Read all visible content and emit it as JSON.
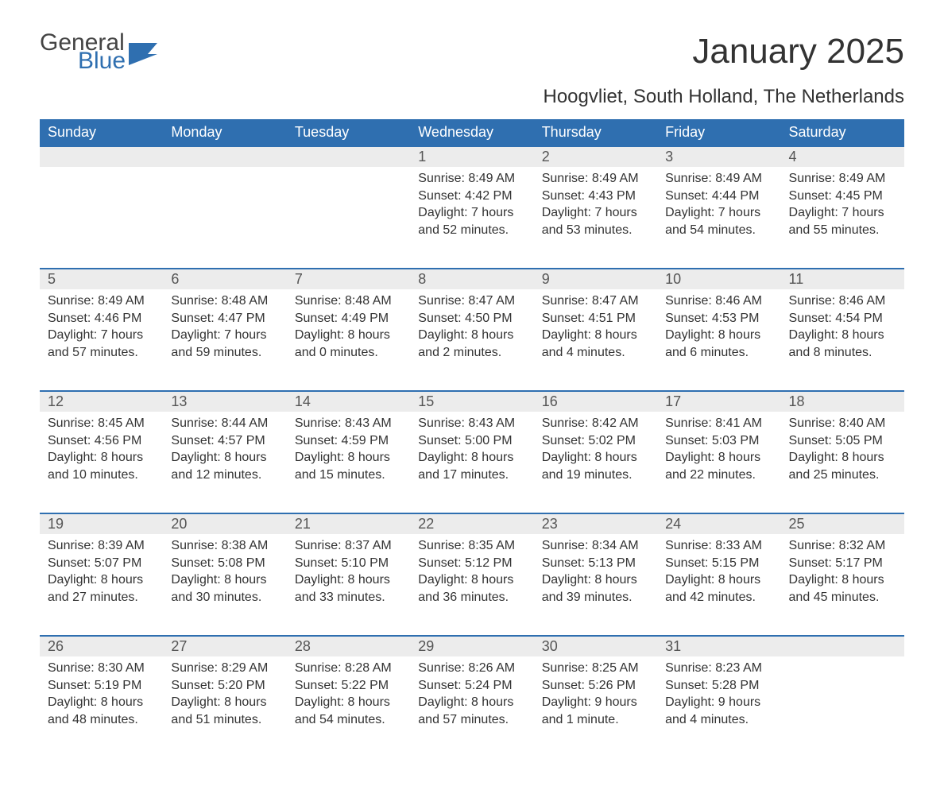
{
  "logo": {
    "line1": "General",
    "line2": "Blue"
  },
  "title": "January 2025",
  "location": "Hoogvliet, South Holland, The Netherlands",
  "headers": [
    "Sunday",
    "Monday",
    "Tuesday",
    "Wednesday",
    "Thursday",
    "Friday",
    "Saturday"
  ],
  "colors": {
    "header_bg": "#2f6fb0",
    "header_text": "#ffffff",
    "daynum_bg": "#ececec",
    "daynum_border": "#2f6fb0",
    "body_text": "#333333",
    "logo_gray": "#444444",
    "logo_blue": "#2f6fb0",
    "page_bg": "#ffffff"
  },
  "weeks": [
    [
      null,
      null,
      null,
      {
        "n": "1",
        "sunrise": "Sunrise: 8:49 AM",
        "sunset": "Sunset: 4:42 PM",
        "d1": "Daylight: 7 hours",
        "d2": "and 52 minutes."
      },
      {
        "n": "2",
        "sunrise": "Sunrise: 8:49 AM",
        "sunset": "Sunset: 4:43 PM",
        "d1": "Daylight: 7 hours",
        "d2": "and 53 minutes."
      },
      {
        "n": "3",
        "sunrise": "Sunrise: 8:49 AM",
        "sunset": "Sunset: 4:44 PM",
        "d1": "Daylight: 7 hours",
        "d2": "and 54 minutes."
      },
      {
        "n": "4",
        "sunrise": "Sunrise: 8:49 AM",
        "sunset": "Sunset: 4:45 PM",
        "d1": "Daylight: 7 hours",
        "d2": "and 55 minutes."
      }
    ],
    [
      {
        "n": "5",
        "sunrise": "Sunrise: 8:49 AM",
        "sunset": "Sunset: 4:46 PM",
        "d1": "Daylight: 7 hours",
        "d2": "and 57 minutes."
      },
      {
        "n": "6",
        "sunrise": "Sunrise: 8:48 AM",
        "sunset": "Sunset: 4:47 PM",
        "d1": "Daylight: 7 hours",
        "d2": "and 59 minutes."
      },
      {
        "n": "7",
        "sunrise": "Sunrise: 8:48 AM",
        "sunset": "Sunset: 4:49 PM",
        "d1": "Daylight: 8 hours",
        "d2": "and 0 minutes."
      },
      {
        "n": "8",
        "sunrise": "Sunrise: 8:47 AM",
        "sunset": "Sunset: 4:50 PM",
        "d1": "Daylight: 8 hours",
        "d2": "and 2 minutes."
      },
      {
        "n": "9",
        "sunrise": "Sunrise: 8:47 AM",
        "sunset": "Sunset: 4:51 PM",
        "d1": "Daylight: 8 hours",
        "d2": "and 4 minutes."
      },
      {
        "n": "10",
        "sunrise": "Sunrise: 8:46 AM",
        "sunset": "Sunset: 4:53 PM",
        "d1": "Daylight: 8 hours",
        "d2": "and 6 minutes."
      },
      {
        "n": "11",
        "sunrise": "Sunrise: 8:46 AM",
        "sunset": "Sunset: 4:54 PM",
        "d1": "Daylight: 8 hours",
        "d2": "and 8 minutes."
      }
    ],
    [
      {
        "n": "12",
        "sunrise": "Sunrise: 8:45 AM",
        "sunset": "Sunset: 4:56 PM",
        "d1": "Daylight: 8 hours",
        "d2": "and 10 minutes."
      },
      {
        "n": "13",
        "sunrise": "Sunrise: 8:44 AM",
        "sunset": "Sunset: 4:57 PM",
        "d1": "Daylight: 8 hours",
        "d2": "and 12 minutes."
      },
      {
        "n": "14",
        "sunrise": "Sunrise: 8:43 AM",
        "sunset": "Sunset: 4:59 PM",
        "d1": "Daylight: 8 hours",
        "d2": "and 15 minutes."
      },
      {
        "n": "15",
        "sunrise": "Sunrise: 8:43 AM",
        "sunset": "Sunset: 5:00 PM",
        "d1": "Daylight: 8 hours",
        "d2": "and 17 minutes."
      },
      {
        "n": "16",
        "sunrise": "Sunrise: 8:42 AM",
        "sunset": "Sunset: 5:02 PM",
        "d1": "Daylight: 8 hours",
        "d2": "and 19 minutes."
      },
      {
        "n": "17",
        "sunrise": "Sunrise: 8:41 AM",
        "sunset": "Sunset: 5:03 PM",
        "d1": "Daylight: 8 hours",
        "d2": "and 22 minutes."
      },
      {
        "n": "18",
        "sunrise": "Sunrise: 8:40 AM",
        "sunset": "Sunset: 5:05 PM",
        "d1": "Daylight: 8 hours",
        "d2": "and 25 minutes."
      }
    ],
    [
      {
        "n": "19",
        "sunrise": "Sunrise: 8:39 AM",
        "sunset": "Sunset: 5:07 PM",
        "d1": "Daylight: 8 hours",
        "d2": "and 27 minutes."
      },
      {
        "n": "20",
        "sunrise": "Sunrise: 8:38 AM",
        "sunset": "Sunset: 5:08 PM",
        "d1": "Daylight: 8 hours",
        "d2": "and 30 minutes."
      },
      {
        "n": "21",
        "sunrise": "Sunrise: 8:37 AM",
        "sunset": "Sunset: 5:10 PM",
        "d1": "Daylight: 8 hours",
        "d2": "and 33 minutes."
      },
      {
        "n": "22",
        "sunrise": "Sunrise: 8:35 AM",
        "sunset": "Sunset: 5:12 PM",
        "d1": "Daylight: 8 hours",
        "d2": "and 36 minutes."
      },
      {
        "n": "23",
        "sunrise": "Sunrise: 8:34 AM",
        "sunset": "Sunset: 5:13 PM",
        "d1": "Daylight: 8 hours",
        "d2": "and 39 minutes."
      },
      {
        "n": "24",
        "sunrise": "Sunrise: 8:33 AM",
        "sunset": "Sunset: 5:15 PM",
        "d1": "Daylight: 8 hours",
        "d2": "and 42 minutes."
      },
      {
        "n": "25",
        "sunrise": "Sunrise: 8:32 AM",
        "sunset": "Sunset: 5:17 PM",
        "d1": "Daylight: 8 hours",
        "d2": "and 45 minutes."
      }
    ],
    [
      {
        "n": "26",
        "sunrise": "Sunrise: 8:30 AM",
        "sunset": "Sunset: 5:19 PM",
        "d1": "Daylight: 8 hours",
        "d2": "and 48 minutes."
      },
      {
        "n": "27",
        "sunrise": "Sunrise: 8:29 AM",
        "sunset": "Sunset: 5:20 PM",
        "d1": "Daylight: 8 hours",
        "d2": "and 51 minutes."
      },
      {
        "n": "28",
        "sunrise": "Sunrise: 8:28 AM",
        "sunset": "Sunset: 5:22 PM",
        "d1": "Daylight: 8 hours",
        "d2": "and 54 minutes."
      },
      {
        "n": "29",
        "sunrise": "Sunrise: 8:26 AM",
        "sunset": "Sunset: 5:24 PM",
        "d1": "Daylight: 8 hours",
        "d2": "and 57 minutes."
      },
      {
        "n": "30",
        "sunrise": "Sunrise: 8:25 AM",
        "sunset": "Sunset: 5:26 PM",
        "d1": "Daylight: 9 hours",
        "d2": "and 1 minute."
      },
      {
        "n": "31",
        "sunrise": "Sunrise: 8:23 AM",
        "sunset": "Sunset: 5:28 PM",
        "d1": "Daylight: 9 hours",
        "d2": "and 4 minutes."
      },
      null
    ]
  ]
}
